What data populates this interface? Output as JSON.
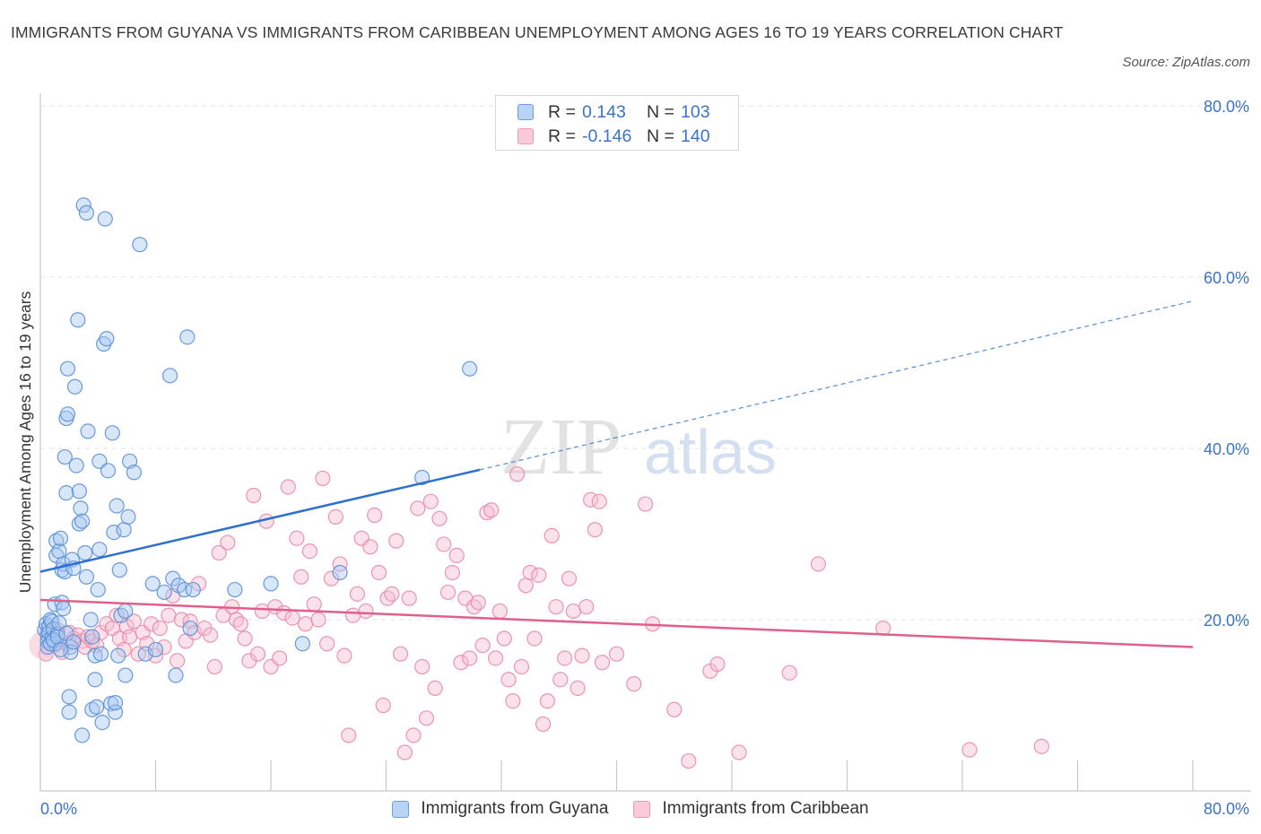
{
  "title": "IMMIGRANTS FROM GUYANA VS IMMIGRANTS FROM CARIBBEAN UNEMPLOYMENT AMONG AGES 16 TO 19 YEARS CORRELATION CHART",
  "source": "Source: ZipAtlas.com",
  "watermark": {
    "zip": "ZIP",
    "atlas": "atlas"
  },
  "legend_top": [
    {
      "r_label": "R =",
      "r_value": "0.143",
      "n_label": "N =",
      "n_value": "103"
    },
    {
      "r_label": "R =",
      "r_value": "-0.146",
      "n_label": "N =",
      "n_value": "140"
    }
  ],
  "colors": {
    "guyana_fill": "#a9c8f2",
    "guyana_stroke": "#5b8fd6",
    "guyana_line": "#2f6fcf",
    "caribbean_fill": "#f6bfd0",
    "caribbean_stroke": "#e88aa8",
    "caribbean_line": "#e0608c",
    "tick_label": "#3a73c8",
    "grid": "#e3e3e3"
  },
  "chart_data": {
    "type": "scatter",
    "title": "IMMIGRANTS FROM GUYANA VS IMMIGRANTS FROM CARIBBEAN UNEMPLOYMENT AMONG AGES 16 TO 19 YEARS CORRELATION CHART",
    "xlabel": "",
    "ylabel": "Unemployment Among Ages 16 to 19 years",
    "xlim": [
      0,
      80
    ],
    "ylim": [
      0,
      80
    ],
    "x_tick_labels": [
      "0.0%",
      "80.0%"
    ],
    "y_tick_labels": [
      {
        "value": 20,
        "label": "20.0%"
      },
      {
        "value": 40,
        "label": "40.0%"
      },
      {
        "value": 60,
        "label": "60.0%"
      },
      {
        "value": 80,
        "label": "80.0%"
      }
    ],
    "grid": true,
    "legend_position": "bottom",
    "series": [
      {
        "name": "Immigrants from Guyana",
        "trend": {
          "x": [
            0,
            30.5
          ],
          "y": [
            25.6,
            37.5
          ],
          "dashed_extension_to": [
            80,
            57.2
          ]
        },
        "points": [
          [
            0.3,
            18.8
          ],
          [
            0.4,
            19.5
          ],
          [
            0.5,
            18.2
          ],
          [
            0.5,
            17.5
          ],
          [
            0.6,
            19.2
          ],
          [
            0.6,
            18.5
          ],
          [
            0.7,
            20.0
          ],
          [
            0.8,
            17.8
          ],
          [
            0.8,
            19.8
          ],
          [
            0.9,
            18.9
          ],
          [
            1.0,
            21.8
          ],
          [
            1.0,
            17.2
          ],
          [
            1.1,
            27.5
          ],
          [
            1.1,
            29.2
          ],
          [
            1.2,
            18.3
          ],
          [
            1.3,
            19.6
          ],
          [
            1.3,
            28.0
          ],
          [
            1.4,
            29.5
          ],
          [
            1.5,
            22.0
          ],
          [
            1.5,
            25.8
          ],
          [
            1.6,
            26.5
          ],
          [
            1.6,
            21.3
          ],
          [
            1.7,
            25.6
          ],
          [
            1.7,
            39.0
          ],
          [
            1.8,
            34.8
          ],
          [
            1.8,
            43.5
          ],
          [
            1.9,
            44.0
          ],
          [
            1.9,
            49.3
          ],
          [
            2.0,
            11.0
          ],
          [
            2.0,
            9.2
          ],
          [
            2.1,
            16.8
          ],
          [
            2.1,
            16.2
          ],
          [
            2.2,
            27.0
          ],
          [
            2.3,
            26.0
          ],
          [
            2.4,
            47.2
          ],
          [
            2.5,
            38.0
          ],
          [
            2.6,
            55.0
          ],
          [
            2.7,
            31.2
          ],
          [
            2.7,
            35.0
          ],
          [
            2.8,
            33.0
          ],
          [
            2.9,
            6.5
          ],
          [
            2.9,
            31.5
          ],
          [
            3.0,
            68.4
          ],
          [
            3.1,
            27.8
          ],
          [
            3.2,
            67.5
          ],
          [
            3.2,
            25.0
          ],
          [
            3.3,
            42.0
          ],
          [
            3.5,
            20.0
          ],
          [
            3.6,
            9.5
          ],
          [
            3.6,
            18.0
          ],
          [
            3.8,
            13.0
          ],
          [
            3.8,
            15.8
          ],
          [
            3.9,
            9.8
          ],
          [
            4.0,
            23.5
          ],
          [
            4.1,
            38.5
          ],
          [
            4.1,
            28.2
          ],
          [
            4.2,
            16.0
          ],
          [
            4.3,
            8.0
          ],
          [
            4.4,
            52.2
          ],
          [
            4.5,
            66.8
          ],
          [
            4.6,
            52.8
          ],
          [
            4.7,
            37.4
          ],
          [
            4.9,
            10.2
          ],
          [
            5.0,
            41.8
          ],
          [
            5.1,
            30.2
          ],
          [
            5.2,
            9.2
          ],
          [
            5.2,
            10.3
          ],
          [
            5.3,
            33.3
          ],
          [
            5.4,
            15.8
          ],
          [
            5.5,
            25.8
          ],
          [
            5.6,
            20.5
          ],
          [
            5.8,
            30.5
          ],
          [
            5.9,
            21.0
          ],
          [
            5.9,
            13.5
          ],
          [
            6.1,
            32.0
          ],
          [
            6.2,
            38.5
          ],
          [
            6.5,
            37.2
          ],
          [
            6.9,
            63.8
          ],
          [
            7.3,
            16.0
          ],
          [
            7.8,
            24.2
          ],
          [
            8.0,
            16.5
          ],
          [
            8.6,
            23.2
          ],
          [
            9.0,
            48.5
          ],
          [
            9.2,
            24.8
          ],
          [
            9.4,
            13.5
          ],
          [
            9.6,
            24.0
          ],
          [
            10.0,
            23.5
          ],
          [
            10.2,
            53.0
          ],
          [
            10.4,
            19.0
          ],
          [
            10.6,
            23.5
          ],
          [
            13.5,
            23.5
          ],
          [
            16.0,
            24.2
          ],
          [
            18.2,
            17.2
          ],
          [
            20.8,
            25.5
          ],
          [
            26.5,
            36.6
          ],
          [
            29.8,
            49.3
          ],
          [
            0.5,
            16.8
          ],
          [
            0.7,
            17.2
          ],
          [
            0.9,
            17.6
          ],
          [
            1.2,
            18.0
          ],
          [
            1.4,
            16.5
          ],
          [
            1.8,
            18.4
          ],
          [
            2.3,
            17.4
          ]
        ]
      },
      {
        "name": "Immigrants from Caribbean",
        "trend": {
          "x": [
            0,
            80
          ],
          "y": [
            22.3,
            16.8
          ]
        },
        "points": [
          [
            0.4,
            16.0
          ],
          [
            0.6,
            17.5
          ],
          [
            0.8,
            18.2
          ],
          [
            1.0,
            17.0
          ],
          [
            1.2,
            18.8
          ],
          [
            1.5,
            16.2
          ],
          [
            1.8,
            17.2
          ],
          [
            2.0,
            18.5
          ],
          [
            2.3,
            17.8
          ],
          [
            2.6,
            18.2
          ],
          [
            2.9,
            17.5
          ],
          [
            3.1,
            16.8
          ],
          [
            3.3,
            18.0
          ],
          [
            3.6,
            17.5
          ],
          [
            3.9,
            17.0
          ],
          [
            4.2,
            18.5
          ],
          [
            4.6,
            19.5
          ],
          [
            5.0,
            19.0
          ],
          [
            5.3,
            20.5
          ],
          [
            5.5,
            17.8
          ],
          [
            5.8,
            16.5
          ],
          [
            6.0,
            19.2
          ],
          [
            6.2,
            18.0
          ],
          [
            6.5,
            19.8
          ],
          [
            6.8,
            16.0
          ],
          [
            7.1,
            18.5
          ],
          [
            7.4,
            17.2
          ],
          [
            7.7,
            19.5
          ],
          [
            8.0,
            15.8
          ],
          [
            8.3,
            19.0
          ],
          [
            8.6,
            16.8
          ],
          [
            8.9,
            20.5
          ],
          [
            9.2,
            22.8
          ],
          [
            9.5,
            15.2
          ],
          [
            9.8,
            20.0
          ],
          [
            10.1,
            17.5
          ],
          [
            10.4,
            19.8
          ],
          [
            10.7,
            18.5
          ],
          [
            11.0,
            24.2
          ],
          [
            11.4,
            19.0
          ],
          [
            11.8,
            18.2
          ],
          [
            12.1,
            14.5
          ],
          [
            12.4,
            27.8
          ],
          [
            12.7,
            20.5
          ],
          [
            13.0,
            29.0
          ],
          [
            13.3,
            21.5
          ],
          [
            13.6,
            20.0
          ],
          [
            13.9,
            19.5
          ],
          [
            14.2,
            17.8
          ],
          [
            14.5,
            15.2
          ],
          [
            14.8,
            34.5
          ],
          [
            15.1,
            16.0
          ],
          [
            15.4,
            21.0
          ],
          [
            15.7,
            31.5
          ],
          [
            16.0,
            14.5
          ],
          [
            16.3,
            21.5
          ],
          [
            16.6,
            15.5
          ],
          [
            16.9,
            20.8
          ],
          [
            17.2,
            35.5
          ],
          [
            17.5,
            20.2
          ],
          [
            17.8,
            29.5
          ],
          [
            18.1,
            25.0
          ],
          [
            18.4,
            19.5
          ],
          [
            18.7,
            28.0
          ],
          [
            19.0,
            21.8
          ],
          [
            19.3,
            20.0
          ],
          [
            19.6,
            36.5
          ],
          [
            19.9,
            17.2
          ],
          [
            20.2,
            24.8
          ],
          [
            20.5,
            32.0
          ],
          [
            20.8,
            26.5
          ],
          [
            21.1,
            15.8
          ],
          [
            21.4,
            6.5
          ],
          [
            21.7,
            20.5
          ],
          [
            22.0,
            23.0
          ],
          [
            22.3,
            29.5
          ],
          [
            22.6,
            21.0
          ],
          [
            22.9,
            28.5
          ],
          [
            23.2,
            32.2
          ],
          [
            23.5,
            25.5
          ],
          [
            23.8,
            10.0
          ],
          [
            24.1,
            22.5
          ],
          [
            24.4,
            23.0
          ],
          [
            24.7,
            29.2
          ],
          [
            25.0,
            16.0
          ],
          [
            25.3,
            4.5
          ],
          [
            25.6,
            22.5
          ],
          [
            25.9,
            6.5
          ],
          [
            26.2,
            33.0
          ],
          [
            26.5,
            14.5
          ],
          [
            26.8,
            8.5
          ],
          [
            27.1,
            33.8
          ],
          [
            27.4,
            12.0
          ],
          [
            27.7,
            31.8
          ],
          [
            28.0,
            28.8
          ],
          [
            28.3,
            23.2
          ],
          [
            28.6,
            25.5
          ],
          [
            28.9,
            27.5
          ],
          [
            29.2,
            15.0
          ],
          [
            29.5,
            22.5
          ],
          [
            29.8,
            15.5
          ],
          [
            30.1,
            21.5
          ],
          [
            30.4,
            22.0
          ],
          [
            30.7,
            17.0
          ],
          [
            31.0,
            32.5
          ],
          [
            31.3,
            32.8
          ],
          [
            31.6,
            15.5
          ],
          [
            31.9,
            21.0
          ],
          [
            32.2,
            17.8
          ],
          [
            32.5,
            13.0
          ],
          [
            32.8,
            10.5
          ],
          [
            33.1,
            37.0
          ],
          [
            33.4,
            14.5
          ],
          [
            33.7,
            24.0
          ],
          [
            34.0,
            25.5
          ],
          [
            34.3,
            17.8
          ],
          [
            34.6,
            25.2
          ],
          [
            34.9,
            7.8
          ],
          [
            35.2,
            10.5
          ],
          [
            35.5,
            29.8
          ],
          [
            35.8,
            21.5
          ],
          [
            36.1,
            13.0
          ],
          [
            36.4,
            15.5
          ],
          [
            36.7,
            24.8
          ],
          [
            37.0,
            21.0
          ],
          [
            37.3,
            12.0
          ],
          [
            37.6,
            15.8
          ],
          [
            37.9,
            21.5
          ],
          [
            38.2,
            34.0
          ],
          [
            38.5,
            30.5
          ],
          [
            38.8,
            33.8
          ],
          [
            39.0,
            15.0
          ],
          [
            40.0,
            16.0
          ],
          [
            41.2,
            12.5
          ],
          [
            42.0,
            33.5
          ],
          [
            42.5,
            19.5
          ],
          [
            44.0,
            9.5
          ],
          [
            45.0,
            3.5
          ],
          [
            46.5,
            14.0
          ],
          [
            47.0,
            14.8
          ],
          [
            48.5,
            4.5
          ],
          [
            52.0,
            13.8
          ],
          [
            54.0,
            26.5
          ],
          [
            58.5,
            19.0
          ],
          [
            64.5,
            4.8
          ],
          [
            69.5,
            5.2
          ]
        ]
      }
    ]
  }
}
